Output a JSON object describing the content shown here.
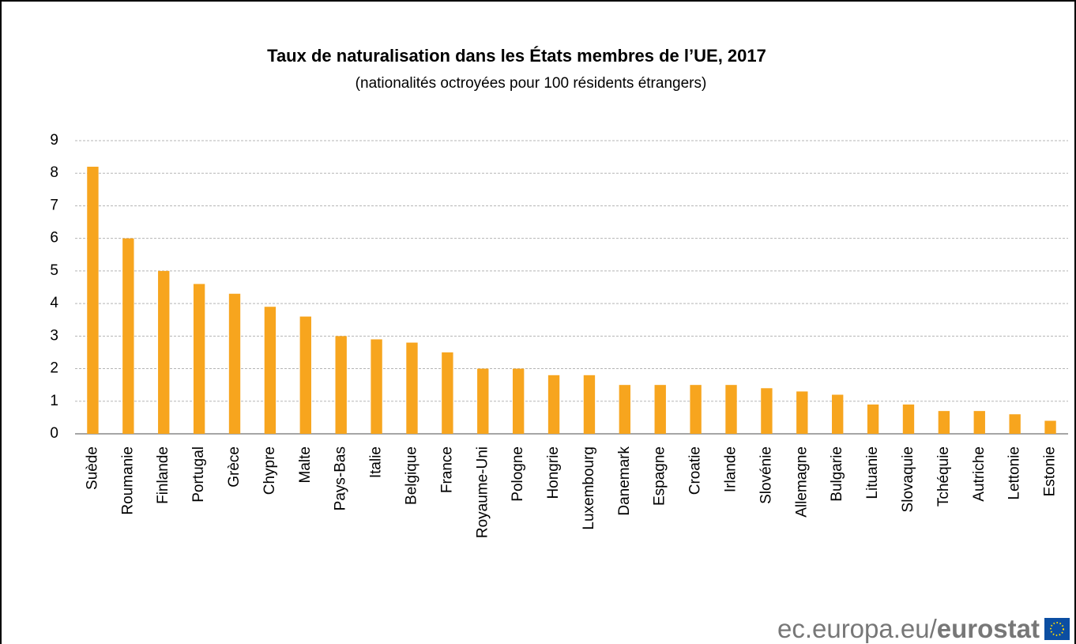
{
  "chart_data": {
    "type": "bar",
    "title": "Taux de naturalisation dans les États membres de l’UE, 2017",
    "subtitle": "(nationalités octroyées pour 100 résidents étrangers)",
    "categories": [
      "Suède",
      "Roumanie",
      "Finlande",
      "Portugal",
      "Grèce",
      "Chypre",
      "Malte",
      "Pays-Bas",
      "Italie",
      "Belgique",
      "France",
      "Royaume-Uni",
      "Pologne",
      "Hongrie",
      "Luxembourg",
      "Danemark",
      "Espagne",
      "Croatie",
      "Irlande",
      "Slovénie",
      "Allemagne",
      "Bulgarie",
      "Lituanie",
      "Slovaquie",
      "Tchéquie",
      "Autriche",
      "Lettonie",
      "Estonie"
    ],
    "values": [
      8.2,
      6.0,
      5.0,
      4.6,
      4.3,
      3.9,
      3.6,
      3.0,
      2.9,
      2.8,
      2.5,
      2.0,
      2.0,
      1.8,
      1.8,
      1.5,
      1.5,
      1.5,
      1.5,
      1.4,
      1.3,
      1.2,
      0.9,
      0.9,
      0.7,
      0.7,
      0.6,
      0.4
    ],
    "color": "#f7a51e",
    "ylim": [
      0,
      9
    ],
    "yticks": [
      0,
      1,
      2,
      3,
      4,
      5,
      6,
      7,
      8,
      9
    ],
    "grid": true
  },
  "footer": {
    "site": "ec.europa.eu/",
    "brand": "eurostat"
  }
}
